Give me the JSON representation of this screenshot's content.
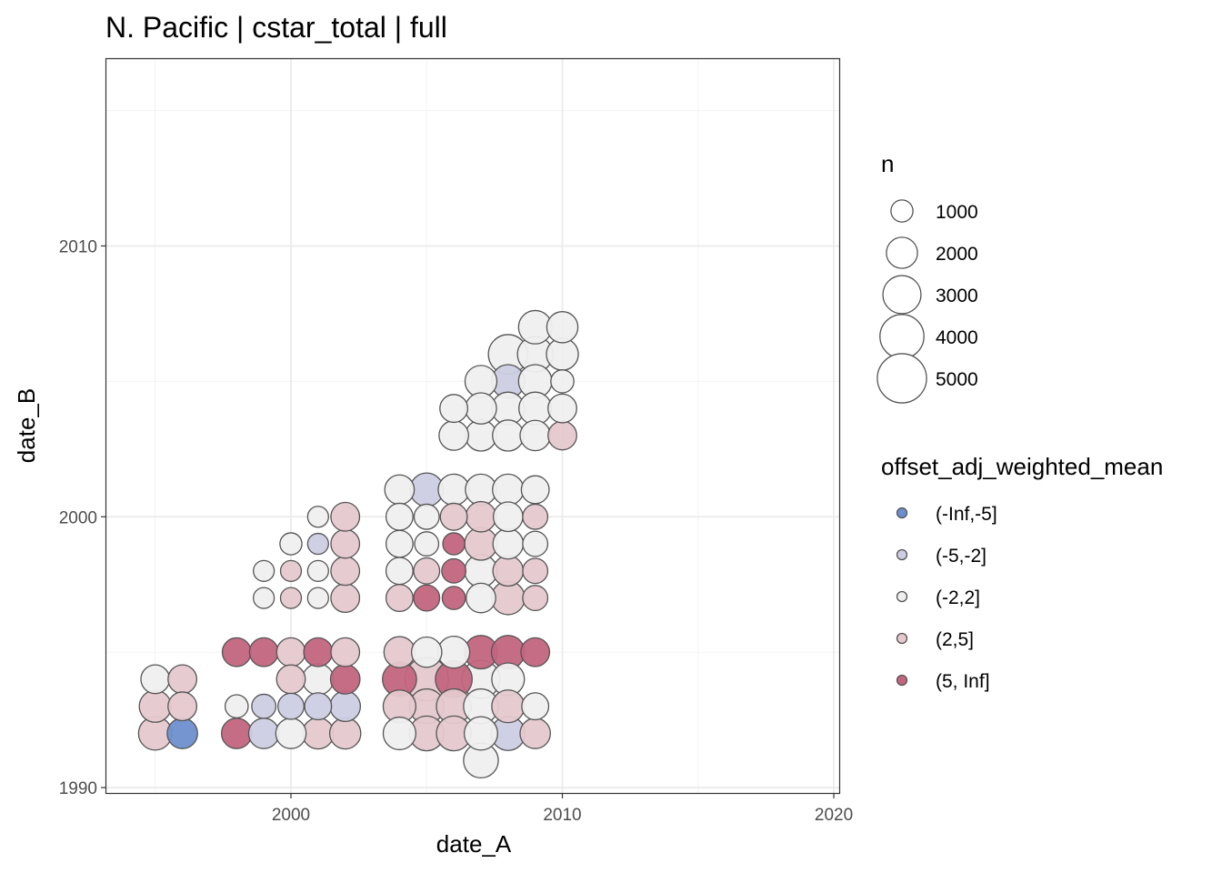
{
  "chart_data": {
    "type": "scatter",
    "title": "N. Pacific | cstar_total | full",
    "xlabel": "date_A",
    "ylabel": "date_B",
    "xlim": [
      1993.2,
      2020.2
    ],
    "ylim": [
      1989.8,
      2016.9
    ],
    "x_ticks": [
      2000,
      2010,
      2020
    ],
    "y_ticks": [
      1990,
      2000,
      2010
    ],
    "x_tick_labels": [
      "2000",
      "2010",
      "2020"
    ],
    "y_tick_labels": [
      "1990",
      "2000",
      "2010"
    ],
    "grid": true,
    "size_legend": {
      "title": "n",
      "values": [
        1000,
        2000,
        3000,
        4000,
        5000
      ],
      "labels": [
        "1000",
        "2000",
        "3000",
        "4000",
        "5000"
      ]
    },
    "color_legend": {
      "title": "offset_adj_weighted_mean",
      "categories": [
        "(-Inf,-5]",
        "(-5,-2]",
        "(-2,2]",
        "(2,5]",
        "(5, Inf]"
      ],
      "colors": [
        "#6e8fcf",
        "#cdcde3",
        "#efefef",
        "#e5c9cf",
        "#c3657f"
      ]
    },
    "point_columns": [
      "date_A",
      "date_B",
      "n",
      "class"
    ],
    "points": [
      [
        1995,
        1994,
        1700,
        2
      ],
      [
        1996,
        1994,
        1700,
        3
      ],
      [
        1995,
        1993,
        2100,
        3
      ],
      [
        1996,
        1993,
        1700,
        3
      ],
      [
        1995,
        1992,
        2300,
        3
      ],
      [
        1996,
        1992,
        1900,
        0
      ],
      [
        1998,
        1995,
        1700,
        4
      ],
      [
        1999,
        1995,
        1700,
        4
      ],
      [
        2000,
        1995,
        1700,
        3
      ],
      [
        2001,
        1995,
        1700,
        4
      ],
      [
        2002,
        1995,
        1700,
        3
      ],
      [
        2000,
        1994,
        1700,
        3
      ],
      [
        2001,
        1994,
        2000,
        2
      ],
      [
        2002,
        1994,
        1800,
        4
      ],
      [
        1998,
        1993,
        1100,
        2
      ],
      [
        1999,
        1993,
        1200,
        1
      ],
      [
        2000,
        1993,
        1400,
        1
      ],
      [
        2001,
        1993,
        1500,
        1
      ],
      [
        2002,
        1993,
        1900,
        1
      ],
      [
        1998,
        1992,
        1900,
        4
      ],
      [
        1999,
        1992,
        1900,
        1
      ],
      [
        2000,
        1992,
        1900,
        2
      ],
      [
        2001,
        1992,
        2000,
        3
      ],
      [
        2002,
        1992,
        2000,
        3
      ],
      [
        1999,
        1997,
        900,
        2
      ],
      [
        2000,
        1997,
        900,
        3
      ],
      [
        2001,
        1997,
        900,
        2
      ],
      [
        2002,
        1997,
        1700,
        3
      ],
      [
        1999,
        1998,
        900,
        2
      ],
      [
        2000,
        1998,
        900,
        3
      ],
      [
        2001,
        1998,
        900,
        2
      ],
      [
        2002,
        1998,
        1700,
        3
      ],
      [
        2000,
        1999,
        1000,
        2
      ],
      [
        2001,
        1999,
        900,
        1
      ],
      [
        2002,
        1999,
        1700,
        3
      ],
      [
        2001,
        2000,
        900,
        2
      ],
      [
        2002,
        2000,
        1700,
        3
      ],
      [
        2004,
        1995,
        2000,
        3
      ],
      [
        2005,
        1995,
        1900,
        2
      ],
      [
        2006,
        1995,
        2100,
        2
      ],
      [
        2007,
        1995,
        2300,
        4
      ],
      [
        2008,
        1995,
        2300,
        4
      ],
      [
        2009,
        1995,
        1700,
        4
      ],
      [
        2004,
        1994,
        2400,
        4
      ],
      [
        2005,
        1994,
        3900,
        3
      ],
      [
        2006,
        1994,
        2800,
        4
      ],
      [
        2007,
        1994,
        3000,
        2
      ],
      [
        2008,
        1994,
        2200,
        2
      ],
      [
        2004,
        1993,
        2200,
        3
      ],
      [
        2005,
        1993,
        2500,
        3
      ],
      [
        2006,
        1993,
        2500,
        3
      ],
      [
        2007,
        1993,
        2500,
        2
      ],
      [
        2008,
        1993,
        2200,
        3
      ],
      [
        2009,
        1993,
        1500,
        2
      ],
      [
        2004,
        1992,
        2200,
        2
      ],
      [
        2005,
        1992,
        2500,
        3
      ],
      [
        2006,
        1992,
        2500,
        3
      ],
      [
        2007,
        1992,
        2300,
        2
      ],
      [
        2008,
        1992,
        2400,
        1
      ],
      [
        2009,
        1992,
        1900,
        3
      ],
      [
        2007,
        1991,
        2500,
        2
      ],
      [
        2004,
        1997,
        1500,
        3
      ],
      [
        2005,
        1997,
        1400,
        4
      ],
      [
        2006,
        1997,
        1100,
        4
      ],
      [
        2007,
        1997,
        1800,
        2
      ],
      [
        2008,
        1997,
        2300,
        3
      ],
      [
        2009,
        1997,
        1300,
        3
      ],
      [
        2004,
        1998,
        1500,
        2
      ],
      [
        2005,
        1998,
        1400,
        3
      ],
      [
        2006,
        1998,
        1200,
        4
      ],
      [
        2007,
        1998,
        2200,
        2
      ],
      [
        2008,
        1998,
        1900,
        3
      ],
      [
        2009,
        1998,
        1300,
        3
      ],
      [
        2004,
        1999,
        1500,
        2
      ],
      [
        2005,
        1999,
        1200,
        2
      ],
      [
        2006,
        1999,
        1000,
        4
      ],
      [
        2007,
        1999,
        2200,
        3
      ],
      [
        2008,
        1999,
        1900,
        2
      ],
      [
        2009,
        1999,
        1300,
        2
      ],
      [
        2004,
        2000,
        1500,
        2
      ],
      [
        2005,
        2000,
        1300,
        2
      ],
      [
        2006,
        2000,
        1500,
        3
      ],
      [
        2007,
        2000,
        1900,
        3
      ],
      [
        2008,
        2000,
        1800,
        2
      ],
      [
        2009,
        2000,
        1300,
        3
      ],
      [
        2004,
        2001,
        1800,
        2
      ],
      [
        2005,
        2001,
        2300,
        1
      ],
      [
        2006,
        2001,
        2000,
        2
      ],
      [
        2007,
        2001,
        2000,
        2
      ],
      [
        2008,
        2001,
        2000,
        2
      ],
      [
        2009,
        2001,
        1600,
        2
      ],
      [
        2006,
        2003,
        1800,
        2
      ],
      [
        2007,
        2003,
        2000,
        2
      ],
      [
        2008,
        2003,
        2000,
        2
      ],
      [
        2009,
        2003,
        1900,
        2
      ],
      [
        2010,
        2003,
        1700,
        3
      ],
      [
        2006,
        2004,
        1600,
        2
      ],
      [
        2007,
        2004,
        2000,
        2
      ],
      [
        2008,
        2004,
        2200,
        2
      ],
      [
        2009,
        2004,
        2200,
        2
      ],
      [
        2010,
        2004,
        1700,
        2
      ],
      [
        2007,
        2005,
        2100,
        2
      ],
      [
        2008,
        2005,
        2300,
        1
      ],
      [
        2009,
        2005,
        2300,
        2
      ],
      [
        2010,
        2005,
        1100,
        2
      ],
      [
        2008,
        2006,
        3200,
        2
      ],
      [
        2009,
        2006,
        2600,
        2
      ],
      [
        2010,
        2006,
        2100,
        2
      ],
      [
        2009,
        2007,
        2300,
        2
      ],
      [
        2010,
        2007,
        2000,
        2
      ]
    ]
  }
}
